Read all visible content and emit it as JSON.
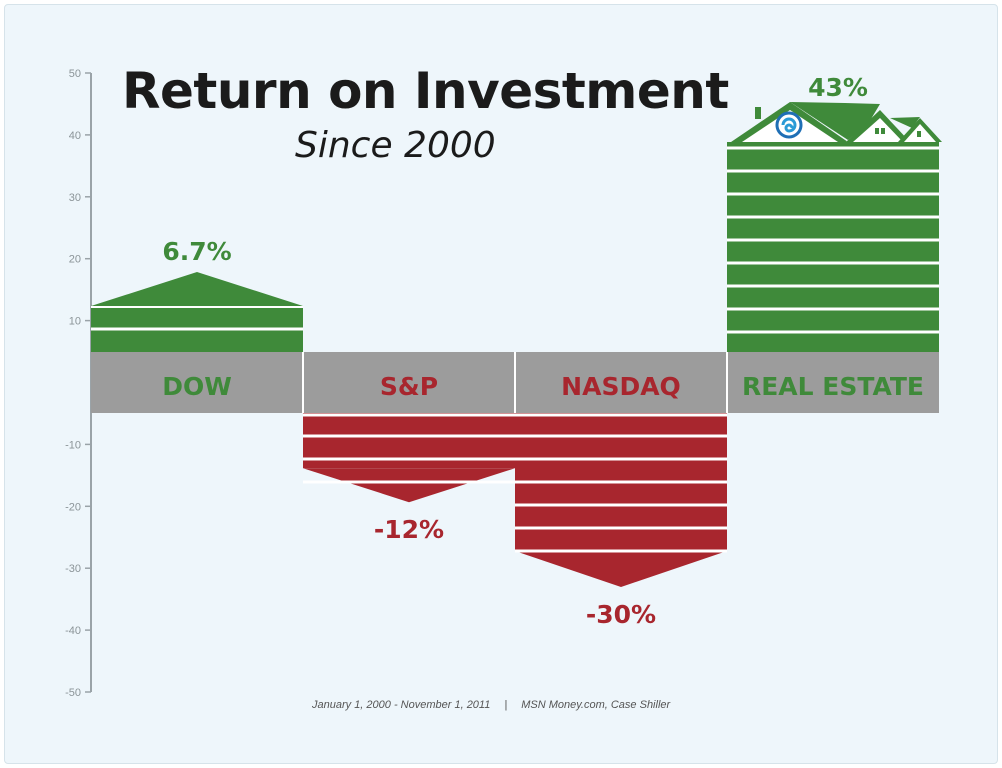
{
  "chart_data": {
    "type": "bar",
    "title": "Return on Investment",
    "subtitle": "Since 2000",
    "categories": [
      "DOW",
      "S&P",
      "NASDAQ",
      "REAL ESTATE"
    ],
    "values": [
      6.7,
      -12,
      -30,
      43
    ],
    "value_labels": [
      "6.7%",
      "-12%",
      "-30%",
      "43%"
    ],
    "ylim": [
      -50,
      50
    ],
    "yticks": [
      50,
      40,
      30,
      20,
      10,
      -10,
      -20,
      -30,
      -40,
      -50
    ],
    "ytick_labels": [
      "50",
      "40",
      "30",
      "20",
      "10",
      "-10",
      "-20",
      "-30",
      "-40",
      "-50"
    ],
    "xlabel": "",
    "ylabel": "",
    "grid": false,
    "colors": {
      "positive": "#3f8a3a",
      "negative": "#a8262e",
      "band": "#9c9c9c",
      "stripe": "#ffffff"
    }
  },
  "footer": {
    "date_range": "January 1, 2000 - November 1, 2011",
    "separator": "|",
    "source": "MSN Money.com, Case Shiller"
  },
  "icons": {
    "house": "house-icon",
    "logo": "swirl-logo-icon"
  }
}
